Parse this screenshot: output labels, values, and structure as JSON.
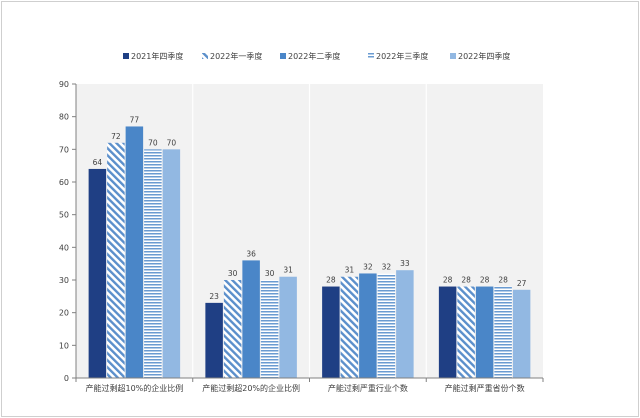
{
  "chart_data": {
    "type": "bar",
    "title": "",
    "xlabel": "",
    "ylabel": "",
    "ylim": [
      0,
      90
    ],
    "yticks": [
      0,
      10,
      20,
      30,
      40,
      50,
      60,
      70,
      80,
      90
    ],
    "grid": false,
    "legend_position": "top",
    "categories": [
      "产能过剩超10%的企业比例",
      "产能过剩超20%的企业比例",
      "产能过剩严重行业个数",
      "产能过剩严重省份个数"
    ],
    "series": [
      {
        "name": "2021年四季度",
        "color": "#1f3f84",
        "pattern": "solid",
        "values": [
          64,
          23,
          28,
          28
        ]
      },
      {
        "name": "2022年一季度",
        "color": "#5b8fcb",
        "pattern": "diagonal",
        "values": [
          72,
          30,
          31,
          28
        ]
      },
      {
        "name": "2022年二季度",
        "color": "#4a86c8",
        "pattern": "solid",
        "values": [
          77,
          36,
          32,
          28
        ]
      },
      {
        "name": "2022年三季度",
        "color": "#6a9bd1",
        "pattern": "horizontal",
        "values": [
          70,
          30,
          32,
          28
        ]
      },
      {
        "name": "2022年四季度",
        "color": "#92b8e2",
        "pattern": "solid",
        "values": [
          70,
          31,
          33,
          27
        ]
      }
    ]
  }
}
